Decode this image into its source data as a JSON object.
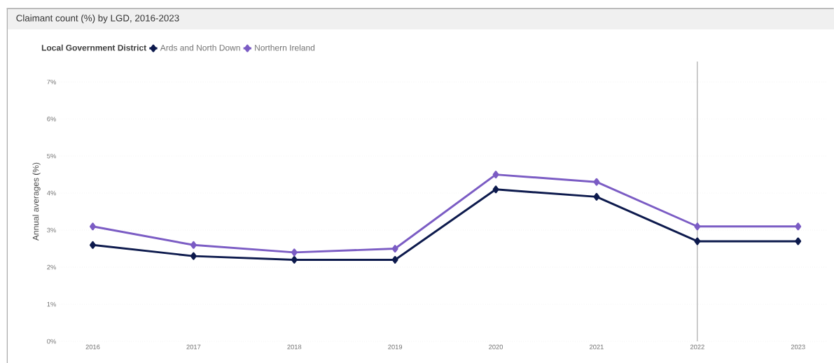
{
  "chart_data": {
    "type": "line",
    "title": "Claimant count (%) by LGD, 2016-2023",
    "ylabel": "Annual averages (%)",
    "legend_title": "Local Government District",
    "x": [
      2016,
      2017,
      2018,
      2019,
      2020,
      2021,
      2022,
      2023
    ],
    "series": [
      {
        "name": "Ards and North Down",
        "color": "#0d1a4d",
        "values": [
          2.6,
          2.3,
          2.2,
          2.2,
          4.1,
          3.9,
          2.7,
          2.7
        ]
      },
      {
        "name": "Northern Ireland",
        "color": "#7b5cc4",
        "values": [
          3.1,
          2.6,
          2.4,
          2.5,
          4.5,
          4.3,
          3.1,
          3.1
        ]
      }
    ],
    "xlim": [
      2015.67,
      2023.28
    ],
    "xticks": [
      2016,
      2017,
      2018,
      2019,
      2020,
      2021,
      2022,
      2023
    ],
    "ylim": [
      0,
      7.55
    ],
    "yticks": [
      {
        "value": 0,
        "label": "0%"
      },
      {
        "value": 1,
        "label": "1%"
      },
      {
        "value": 2,
        "label": "2%"
      },
      {
        "value": 3,
        "label": "3%"
      },
      {
        "value": 4,
        "label": "4%"
      },
      {
        "value": 5,
        "label": "5%"
      },
      {
        "value": 6,
        "label": "6%"
      },
      {
        "value": 7,
        "label": "7%"
      }
    ],
    "ref_lines": [
      {
        "axis": "x",
        "value": 2022,
        "color": "#808080"
      }
    ],
    "grid": "y",
    "legend": "top left",
    "marker": "diamond",
    "line_style": "solid"
  }
}
